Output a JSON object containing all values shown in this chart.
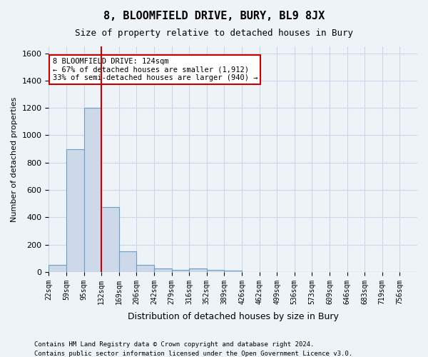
{
  "title": "8, BLOOMFIELD DRIVE, BURY, BL9 8JX",
  "subtitle": "Size of property relative to detached houses in Bury",
  "xlabel": "Distribution of detached houses by size in Bury",
  "ylabel": "Number of detached properties",
  "footnote1": "Contains HM Land Registry data © Crown copyright and database right 2024.",
  "footnote2": "Contains public sector information licensed under the Open Government Licence v3.0.",
  "bin_labels": [
    "22sqm",
    "59sqm",
    "95sqm",
    "132sqm",
    "169sqm",
    "206sqm",
    "242sqm",
    "279sqm",
    "316sqm",
    "352sqm",
    "389sqm",
    "426sqm",
    "462sqm",
    "499sqm",
    "536sqm",
    "573sqm",
    "609sqm",
    "646sqm",
    "683sqm",
    "719sqm",
    "756sqm"
  ],
  "bar_values": [
    50,
    900,
    1200,
    475,
    150,
    50,
    25,
    15,
    25,
    15,
    10,
    0,
    0,
    0,
    0,
    0,
    0,
    0,
    0,
    0,
    0
  ],
  "bar_color": "#cdd9e8",
  "bar_edge_color": "#6a9ec7",
  "grid_color": "#c8d8e8",
  "background_color": "#eef3f8",
  "vline_color": "#cc0000",
  "annotation_text": "8 BLOOMFIELD DRIVE: 124sqm\n← 67% of detached houses are smaller (1,912)\n33% of semi-detached houses are larger (940) →",
  "annotation_box_color": "#ffffff",
  "annotation_box_edge": "#cc0000",
  "ylim": [
    0,
    1650
  ],
  "yticks": [
    0,
    200,
    400,
    600,
    800,
    1000,
    1200,
    1400,
    1600
  ]
}
